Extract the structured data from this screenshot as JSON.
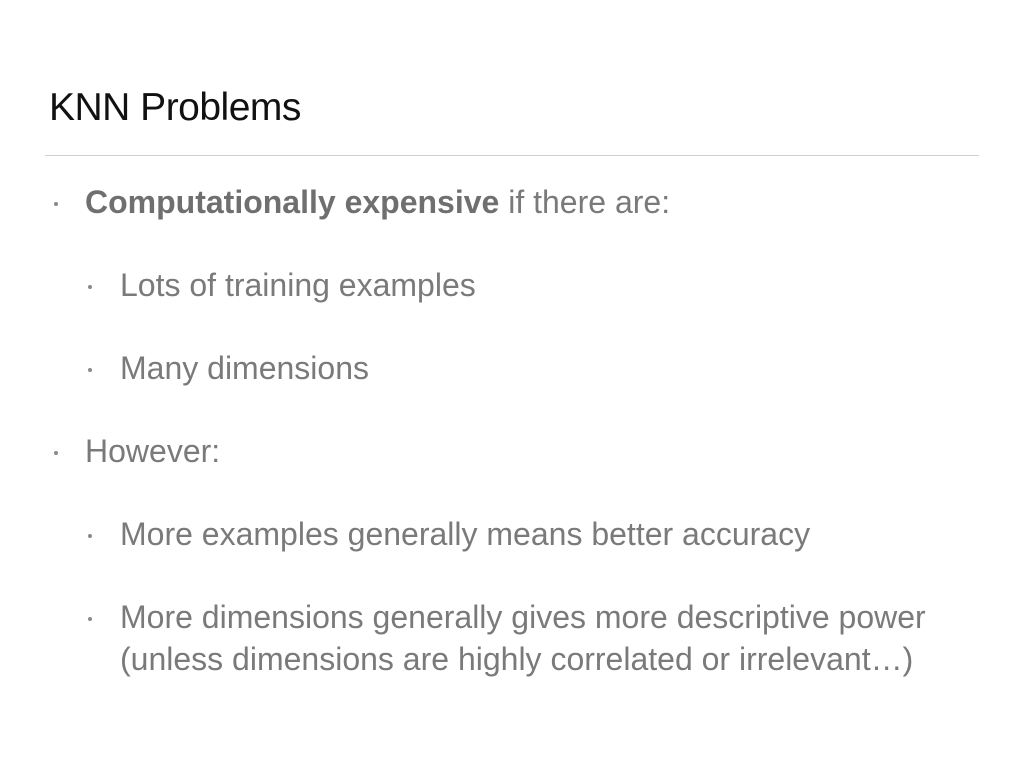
{
  "slide": {
    "title": "KNN Problems",
    "bullets": [
      {
        "bold": "Computationally expensive",
        "text": " if there are:",
        "sub": [
          "Lots of training examples",
          "Many dimensions"
        ]
      },
      {
        "text": "However:",
        "sub": [
          "More examples generally means better accuracy",
          "More dimensions generally gives more descriptive power",
          "(unless dimensions are highly correlated or irrelevant…)"
        ]
      }
    ]
  }
}
